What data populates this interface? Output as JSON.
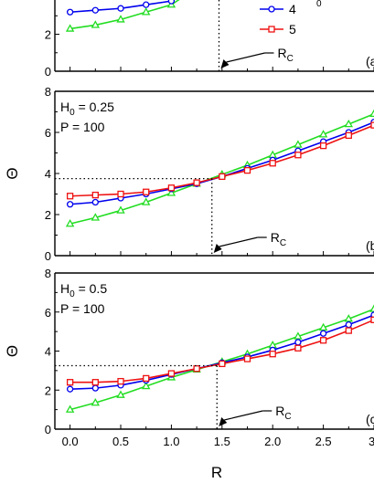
{
  "chart_data": [
    {
      "type": "line",
      "panel_label": "(a",
      "params": [],
      "x": [
        0,
        0.25,
        0.5,
        0.75,
        1.0,
        1.25,
        1.5,
        1.75,
        2.0,
        2.25,
        2.5,
        2.75,
        3.0
      ],
      "series": [
        {
          "name": "",
          "color": "#22dd22",
          "marker": "triangle",
          "values": [
            2.3,
            2.5,
            2.8,
            3.2,
            3.6,
            null,
            null,
            null,
            null,
            null,
            null,
            null,
            null
          ]
        },
        {
          "name": "4",
          "color": "#0000ee",
          "marker": "circle",
          "values": [
            3.2,
            3.3,
            3.4,
            3.6,
            3.8,
            null,
            null,
            null,
            null,
            null,
            null,
            null,
            null
          ]
        },
        {
          "name": "5",
          "color": "#ee1111",
          "marker": "square",
          "values": [
            null,
            null,
            null,
            null,
            null,
            null,
            null,
            null,
            null,
            null,
            null,
            null,
            null
          ]
        }
      ],
      "ylim": [
        0,
        4.25
      ],
      "yticks": [
        "0",
        "2"
      ],
      "critical_label": "R",
      "critical_sub": "C",
      "critical_x": 1.47,
      "critical_y": null,
      "legend_sub_fragment": "0"
    },
    {
      "type": "line",
      "panel_label": "(b",
      "params": [
        {
          "text": "H",
          "sub": "0",
          "rest": " = 0.25"
        },
        {
          "text": "P = 100",
          "sub": "",
          "rest": ""
        }
      ],
      "x": [
        0,
        0.25,
        0.5,
        0.75,
        1.0,
        1.25,
        1.5,
        1.75,
        2.0,
        2.25,
        2.5,
        2.75,
        3.0
      ],
      "series": [
        {
          "name": "",
          "color": "#22dd22",
          "marker": "triangle",
          "values": [
            1.55,
            1.85,
            2.2,
            2.6,
            3.05,
            3.5,
            3.95,
            4.4,
            4.9,
            5.4,
            5.9,
            6.4,
            6.9
          ]
        },
        {
          "name": "4",
          "color": "#0000ee",
          "marker": "circle",
          "values": [
            2.5,
            2.6,
            2.8,
            3.0,
            3.25,
            3.5,
            3.85,
            4.25,
            4.65,
            5.1,
            5.55,
            6.0,
            6.5
          ]
        },
        {
          "name": "5",
          "color": "#ee1111",
          "marker": "square",
          "values": [
            2.9,
            2.95,
            3.0,
            3.1,
            3.3,
            3.55,
            3.85,
            4.15,
            4.5,
            4.9,
            5.35,
            5.85,
            6.35
          ]
        }
      ],
      "ylim": [
        0,
        8
      ],
      "yticks": [
        "0",
        "2",
        "4",
        "6",
        "8"
      ],
      "critical_label": "R",
      "critical_sub": "C",
      "critical_x": 1.4,
      "critical_y": 3.75
    },
    {
      "type": "line",
      "panel_label": "(c",
      "params": [
        {
          "text": "H",
          "sub": "0",
          "rest": " = 0.5"
        },
        {
          "text": "P = 100",
          "sub": "",
          "rest": ""
        }
      ],
      "x": [
        0,
        0.25,
        0.5,
        0.75,
        1.0,
        1.25,
        1.5,
        1.75,
        2.0,
        2.25,
        2.5,
        2.75,
        3.0
      ],
      "series": [
        {
          "name": "",
          "color": "#22dd22",
          "marker": "triangle",
          "values": [
            1.0,
            1.35,
            1.75,
            2.2,
            2.65,
            3.05,
            3.45,
            3.85,
            4.3,
            4.75,
            5.2,
            5.65,
            6.15
          ]
        },
        {
          "name": "4",
          "color": "#0000ee",
          "marker": "circle",
          "values": [
            2.05,
            2.1,
            2.25,
            2.5,
            2.8,
            3.1,
            3.4,
            3.7,
            4.05,
            4.45,
            4.9,
            5.35,
            5.85
          ]
        },
        {
          "name": "5",
          "color": "#ee1111",
          "marker": "square",
          "values": [
            2.4,
            2.4,
            2.45,
            2.6,
            2.85,
            3.1,
            3.35,
            3.6,
            3.85,
            4.15,
            4.55,
            5.05,
            5.6
          ]
        }
      ],
      "ylim": [
        0,
        8
      ],
      "yticks": [
        "0",
        "2",
        "4",
        "6",
        "8"
      ],
      "critical_label": "R",
      "critical_sub": "C",
      "critical_x": 1.45,
      "critical_y": 3.25
    }
  ],
  "axes": {
    "y_title": "Θ",
    "x_title": "R",
    "x_tick_labels": [
      "0.0",
      "0.5",
      "1.0",
      "1.5",
      "2.0",
      "2.5",
      "3"
    ],
    "x_tick_values": [
      0,
      0.5,
      1.0,
      1.5,
      2.0,
      2.5,
      3.0
    ],
    "xlim": [
      -0.15,
      3.0
    ]
  }
}
